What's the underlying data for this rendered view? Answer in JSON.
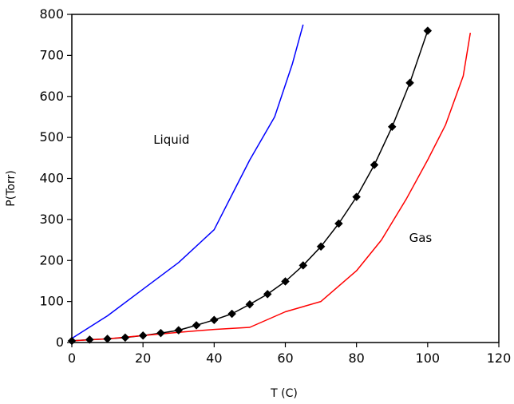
{
  "chart_data": {
    "type": "line",
    "title": "",
    "xlabel": "T (C)",
    "ylabel": "P(Torr)",
    "xlim": [
      0,
      120
    ],
    "ylim": [
      0,
      800
    ],
    "xticks": [
      0,
      20,
      40,
      60,
      80,
      100,
      120
    ],
    "yticks": [
      0,
      100,
      200,
      300,
      400,
      500,
      600,
      700,
      800
    ],
    "grid": false,
    "legend": "none",
    "annotations": [
      {
        "text": "Liquid",
        "x": 28,
        "y": 485
      },
      {
        "text": "Gas",
        "x": 98,
        "y": 245
      }
    ],
    "series": [
      {
        "color": "#0000ff",
        "marker": "none",
        "points": [
          [
            0,
            10
          ],
          [
            10,
            65
          ],
          [
            20,
            130
          ],
          [
            30,
            195
          ],
          [
            40,
            275
          ],
          [
            45,
            360
          ],
          [
            50,
            445
          ],
          [
            57,
            550
          ],
          [
            62,
            680
          ],
          [
            65,
            775
          ]
        ]
      },
      {
        "color": "#000000",
        "marker": "diamond",
        "points": [
          [
            0,
            4
          ],
          [
            5,
            7
          ],
          [
            10,
            9
          ],
          [
            15,
            12
          ],
          [
            20,
            17
          ],
          [
            25,
            23
          ],
          [
            30,
            30
          ],
          [
            35,
            42
          ],
          [
            40,
            55
          ],
          [
            45,
            70
          ],
          [
            50,
            93
          ],
          [
            55,
            118
          ],
          [
            60,
            149
          ],
          [
            65,
            188
          ],
          [
            70,
            234
          ],
          [
            75,
            290
          ],
          [
            80,
            355
          ],
          [
            85,
            433
          ],
          [
            90,
            526
          ],
          [
            95,
            633
          ],
          [
            100,
            760
          ]
        ]
      },
      {
        "color": "#ff0000",
        "marker": "none",
        "points": [
          [
            0,
            4
          ],
          [
            10,
            9
          ],
          [
            20,
            17
          ],
          [
            30,
            25
          ],
          [
            40,
            32
          ],
          [
            50,
            37
          ],
          [
            60,
            75
          ],
          [
            70,
            100
          ],
          [
            80,
            175
          ],
          [
            87,
            250
          ],
          [
            94,
            350
          ],
          [
            100,
            445
          ],
          [
            105,
            530
          ],
          [
            110,
            650
          ],
          [
            112,
            755
          ]
        ]
      }
    ]
  }
}
